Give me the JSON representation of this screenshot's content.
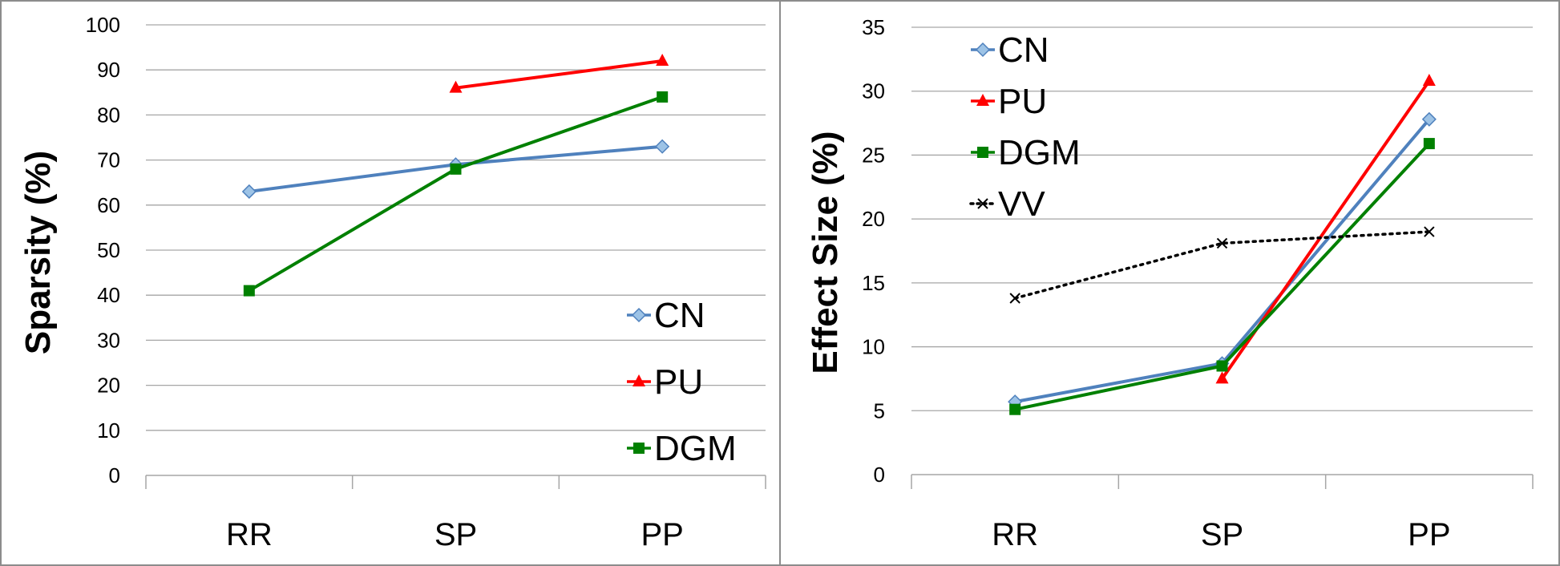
{
  "chart_data": [
    {
      "type": "line",
      "title": "",
      "xlabel": "",
      "ylabel": "Sparsity (%)",
      "categories": [
        "RR",
        "SP",
        "PP"
      ],
      "ylim": [
        0,
        100
      ],
      "yticks": [
        0,
        10,
        20,
        30,
        40,
        50,
        60,
        70,
        80,
        90,
        100
      ],
      "grid": true,
      "legend_position": "bottom-right",
      "series": [
        {
          "name": "CN",
          "values": [
            63,
            69,
            73
          ],
          "color": "#4f81bd",
          "marker": "diamond",
          "dash": "solid"
        },
        {
          "name": "PU",
          "values": [
            null,
            86,
            92
          ],
          "color": "#ff0000",
          "marker": "triangle",
          "dash": "solid"
        },
        {
          "name": "DGM",
          "values": [
            41,
            68,
            84
          ],
          "color": "#008000",
          "marker": "square",
          "dash": "solid"
        }
      ]
    },
    {
      "type": "line",
      "title": "",
      "xlabel": "",
      "ylabel": "Effect Size (%)",
      "categories": [
        "RR",
        "SP",
        "PP"
      ],
      "ylim": [
        0,
        35
      ],
      "yticks": [
        0,
        5,
        10,
        15,
        20,
        25,
        30,
        35
      ],
      "grid": true,
      "legend_position": "top-left",
      "series": [
        {
          "name": "CN",
          "values": [
            5.7,
            8.7,
            27.8
          ],
          "color": "#4f81bd",
          "marker": "diamond",
          "dash": "solid"
        },
        {
          "name": "PU",
          "values": [
            null,
            7.5,
            30.8
          ],
          "color": "#ff0000",
          "marker": "triangle",
          "dash": "solid"
        },
        {
          "name": "DGM",
          "values": [
            5.1,
            8.5,
            25.9
          ],
          "color": "#008000",
          "marker": "square",
          "dash": "solid"
        },
        {
          "name": "VV",
          "values": [
            13.8,
            18.1,
            19.0
          ],
          "color": "#000000",
          "marker": "x",
          "dash": "dotted"
        }
      ]
    }
  ]
}
